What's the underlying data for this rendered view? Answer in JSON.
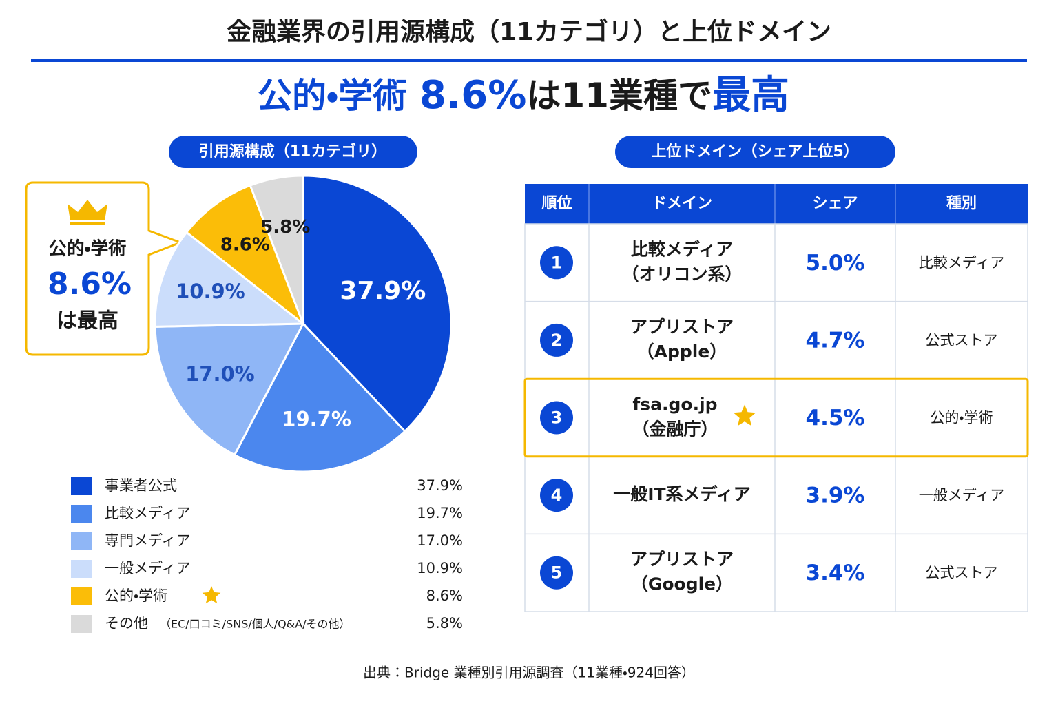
{
  "header": {
    "title": "金融業界の引用源構成（11カテゴリ）と上位ドメイン",
    "headline": [
      "公的・学術",
      "8.6%",
      "は11業種で",
      "最高"
    ]
  },
  "chart_data": {
    "type": "pie",
    "title": "引用源構成（11カテゴリ）",
    "categories": [
      "事業者公式",
      "比較メディア",
      "専門メディア",
      "一般メディア",
      "公的・学術",
      "その他"
    ],
    "values": [
      37.9,
      19.7,
      17.0,
      10.9,
      8.6,
      5.8
    ],
    "value_labels": [
      "37.9%",
      "19.7%",
      "17.0%",
      "10.9%",
      "8.6%",
      "5.8%"
    ],
    "colors": [
      "#0a47d4",
      "#4b87ee",
      "#8fb6f6",
      "#cbddfb",
      "#fbbd08",
      "#dadada"
    ],
    "other_note": "（EC/口コミ/SNS/個人/Q&A/その他）"
  },
  "callout": {
    "label": "公的・学術",
    "value": "8.6%",
    "suffix": "は最高"
  },
  "table": {
    "title": "上位ドメイン（シェア上位5）",
    "columns": [
      "順位",
      "ドメイン",
      "シェア",
      "種別"
    ],
    "rows": [
      {
        "rank": "1",
        "domain": [
          "比較メディア",
          "（オリコン系）"
        ],
        "share": "5.0%",
        "kind": "比較メディア"
      },
      {
        "rank": "2",
        "domain": [
          "アプリストア",
          "（Apple）"
        ],
        "share": "4.7%",
        "kind": "公式ストア"
      },
      {
        "rank": "3",
        "domain": [
          "fsa.go.jp",
          "（金融庁）"
        ],
        "share": "4.5%",
        "kind": "公的・学術"
      },
      {
        "rank": "4",
        "domain": [
          "一般IT系メディア"
        ],
        "share": "3.9%",
        "kind": "一般メディア"
      },
      {
        "rank": "5",
        "domain": [
          "アプリストア",
          "（Google）"
        ],
        "share": "3.4%",
        "kind": "公式ストア"
      }
    ]
  },
  "source": "出典：Bridge 業種別引用源調査（11業種・924回答）"
}
